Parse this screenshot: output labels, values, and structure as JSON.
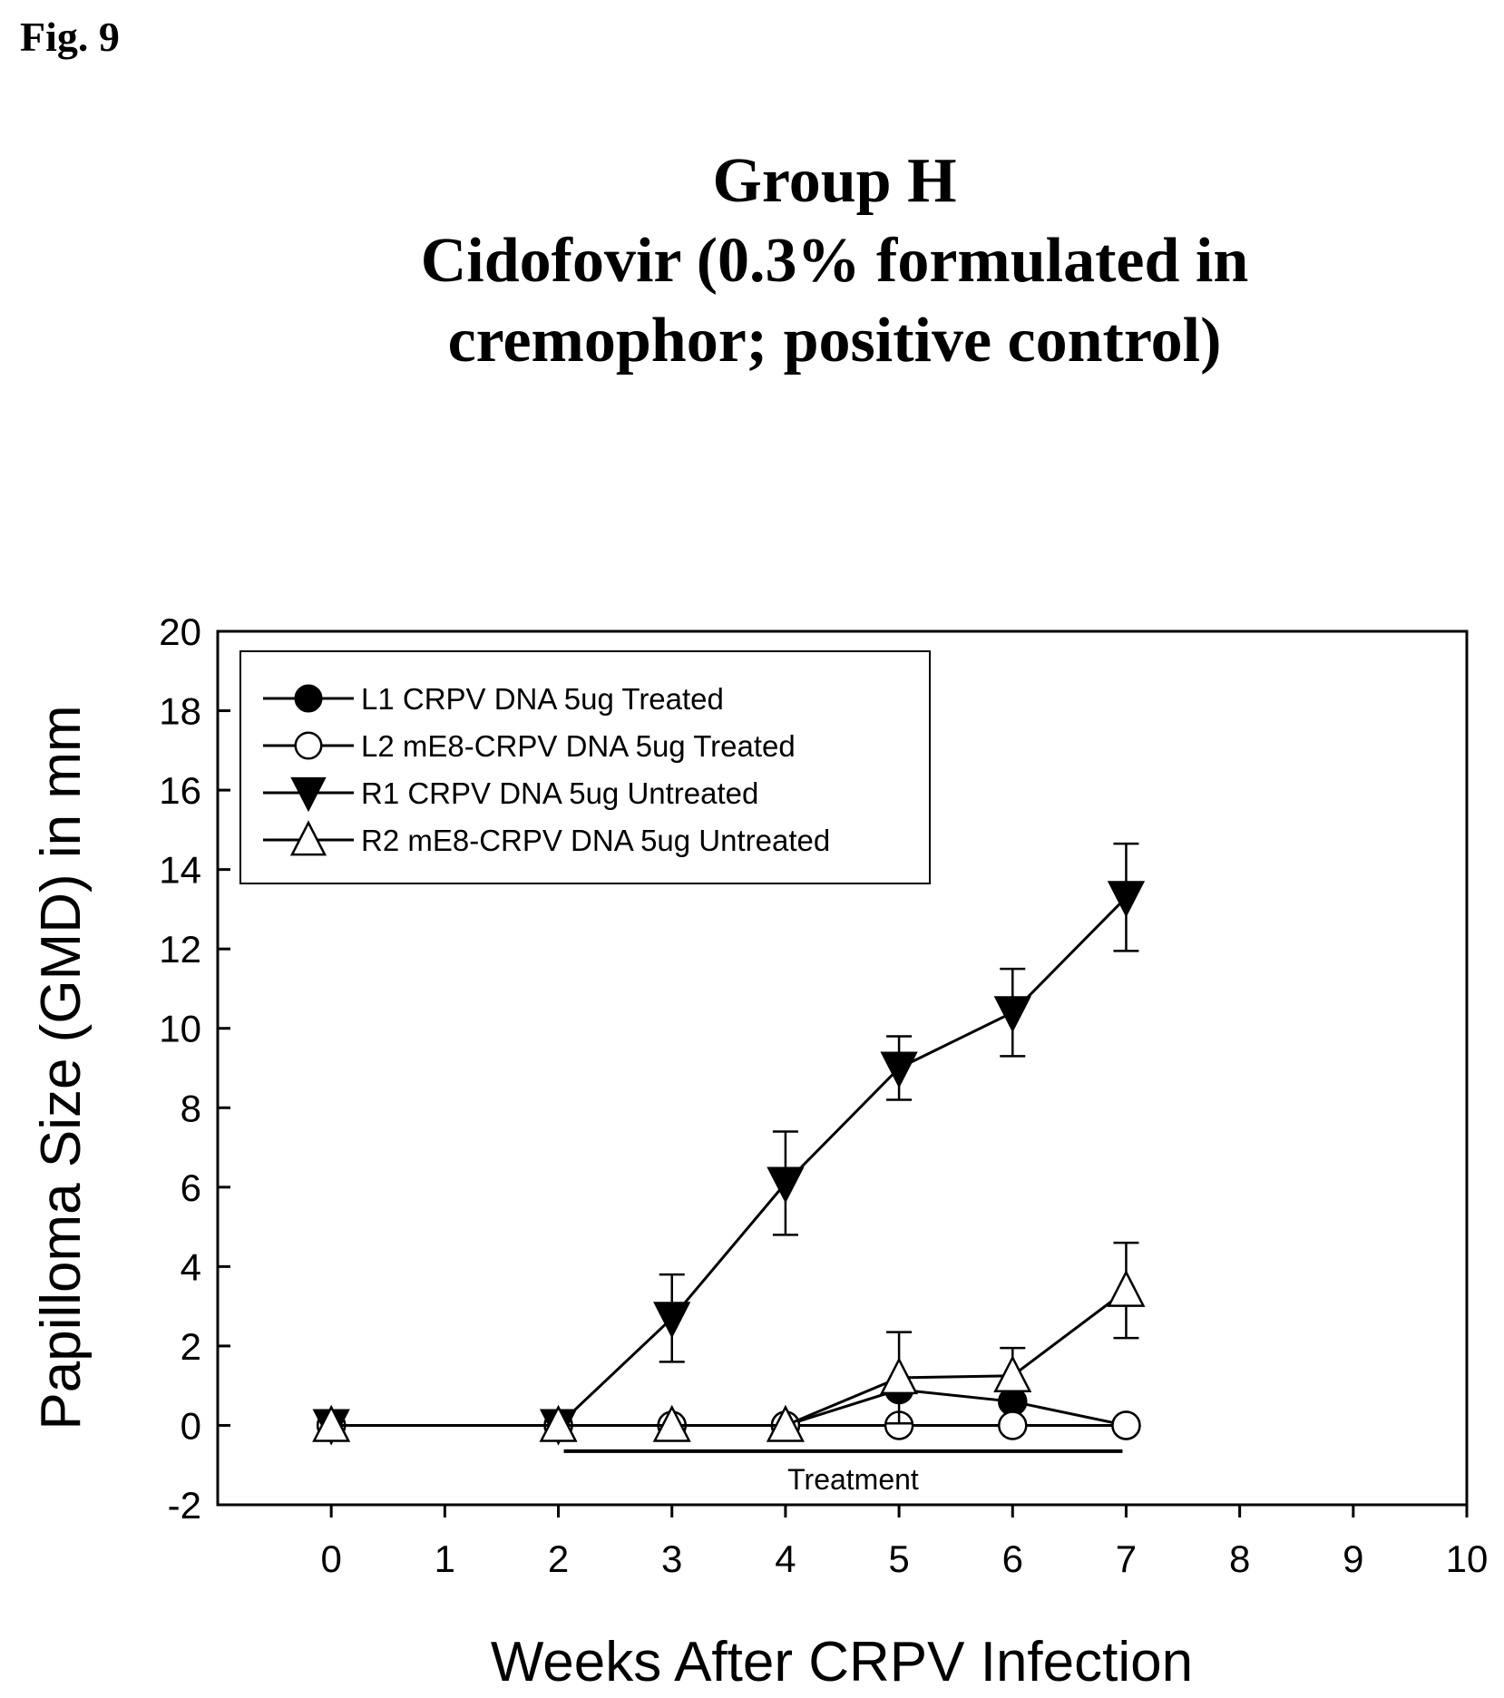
{
  "figure_label": "Fig. 9",
  "title_lines": [
    "Group H",
    "Cidofovir (0.3% formulated in",
    "cremophor; positive control)"
  ],
  "chart_data": {
    "type": "line",
    "title": "Group H Cidofovir (0.3% formulated in cremophor; positive control)",
    "xlabel": "Weeks After CRPV Infection",
    "ylabel": "Papilloma Size (GMD) in mm",
    "xlim": [
      -1,
      10
    ],
    "ylim": [
      -2,
      20
    ],
    "x_ticks": [
      0,
      1,
      2,
      3,
      4,
      5,
      6,
      7,
      8,
      9,
      10
    ],
    "y_ticks": [
      -2,
      0,
      2,
      4,
      6,
      8,
      10,
      12,
      14,
      16,
      18,
      20
    ],
    "grid": false,
    "legend_position": "top-left",
    "series": [
      {
        "name": "L1 CRPV DNA 5ug Treated",
        "marker": "filled-circle",
        "x": [
          0,
          2,
          3,
          4,
          5,
          6,
          7
        ],
        "y": [
          0,
          0,
          0,
          0,
          0.9,
          0.6,
          0
        ],
        "error": [
          0,
          0,
          0,
          0,
          0,
          0,
          0
        ]
      },
      {
        "name": "L2 mE8-CRPV DNA 5ug Treated",
        "marker": "open-circle",
        "x": [
          0,
          2,
          3,
          4,
          5,
          6,
          7
        ],
        "y": [
          0,
          0,
          0,
          0,
          0,
          0,
          0
        ],
        "error": [
          0,
          0,
          0,
          0,
          0,
          0,
          0
        ]
      },
      {
        "name": "R1 CRPV DNA 5ug Untreated",
        "marker": "filled-triangle-down",
        "x": [
          0,
          2,
          3,
          4,
          5,
          6,
          7
        ],
        "y": [
          0,
          0,
          2.7,
          6.1,
          9.0,
          10.4,
          13.3
        ],
        "error": [
          0,
          0,
          1.1,
          1.3,
          0.8,
          1.1,
          1.35
        ]
      },
      {
        "name": "R2 mE8-CRPV DNA 5ug Untreated",
        "marker": "open-triangle-up",
        "x": [
          0,
          2,
          3,
          4,
          5,
          6,
          7
        ],
        "y": [
          0,
          0,
          0,
          0,
          1.2,
          1.25,
          3.4
        ],
        "error": [
          0,
          0,
          0,
          0,
          1.15,
          0.7,
          1.2
        ]
      }
    ],
    "annotations": [
      {
        "text": "Treatment",
        "x_start": 2,
        "x_end": 7,
        "y": -0.65
      }
    ]
  }
}
